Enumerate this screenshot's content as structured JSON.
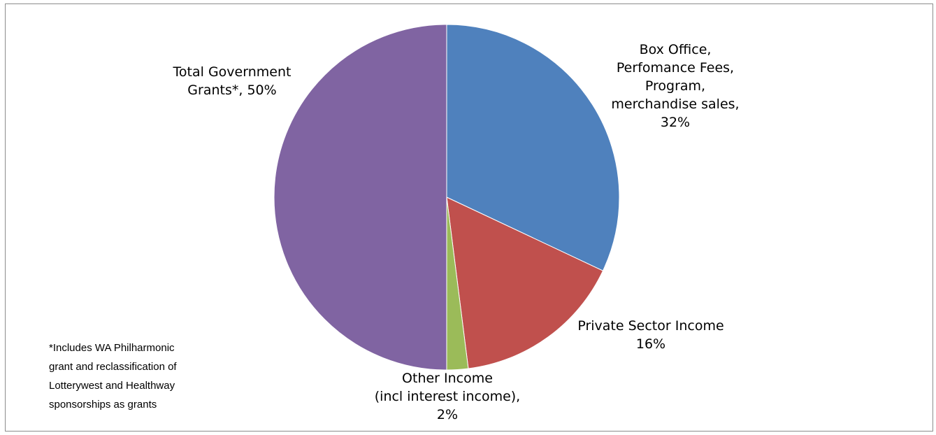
{
  "chart_data": {
    "type": "pie",
    "start_angle_deg": 0,
    "direction": "clockwise",
    "slices": [
      {
        "label_lines": [
          "Box Office,",
          "Perfomance Fees,",
          "Program,",
          "merchandise sales,",
          "32%"
        ],
        "value": 32,
        "color": "#4f81bd"
      },
      {
        "label_lines": [
          "Private Sector Income",
          "16%"
        ],
        "value": 16,
        "color": "#c0504d"
      },
      {
        "label_lines": [
          "Other Income",
          "(incl interest income),",
          "2%"
        ],
        "value": 2,
        "color": "#9bbb59"
      },
      {
        "label_lines": [
          "Total Government",
          "Grants*, 50%"
        ],
        "value": 50,
        "color": "#8064a2"
      }
    ],
    "legend": "none",
    "footnote_lines": [
      "*Includes WA Philharmonic",
      "grant and reclassification of",
      "Lotterywest and Healthway",
      "sponsorships as  grants"
    ]
  }
}
